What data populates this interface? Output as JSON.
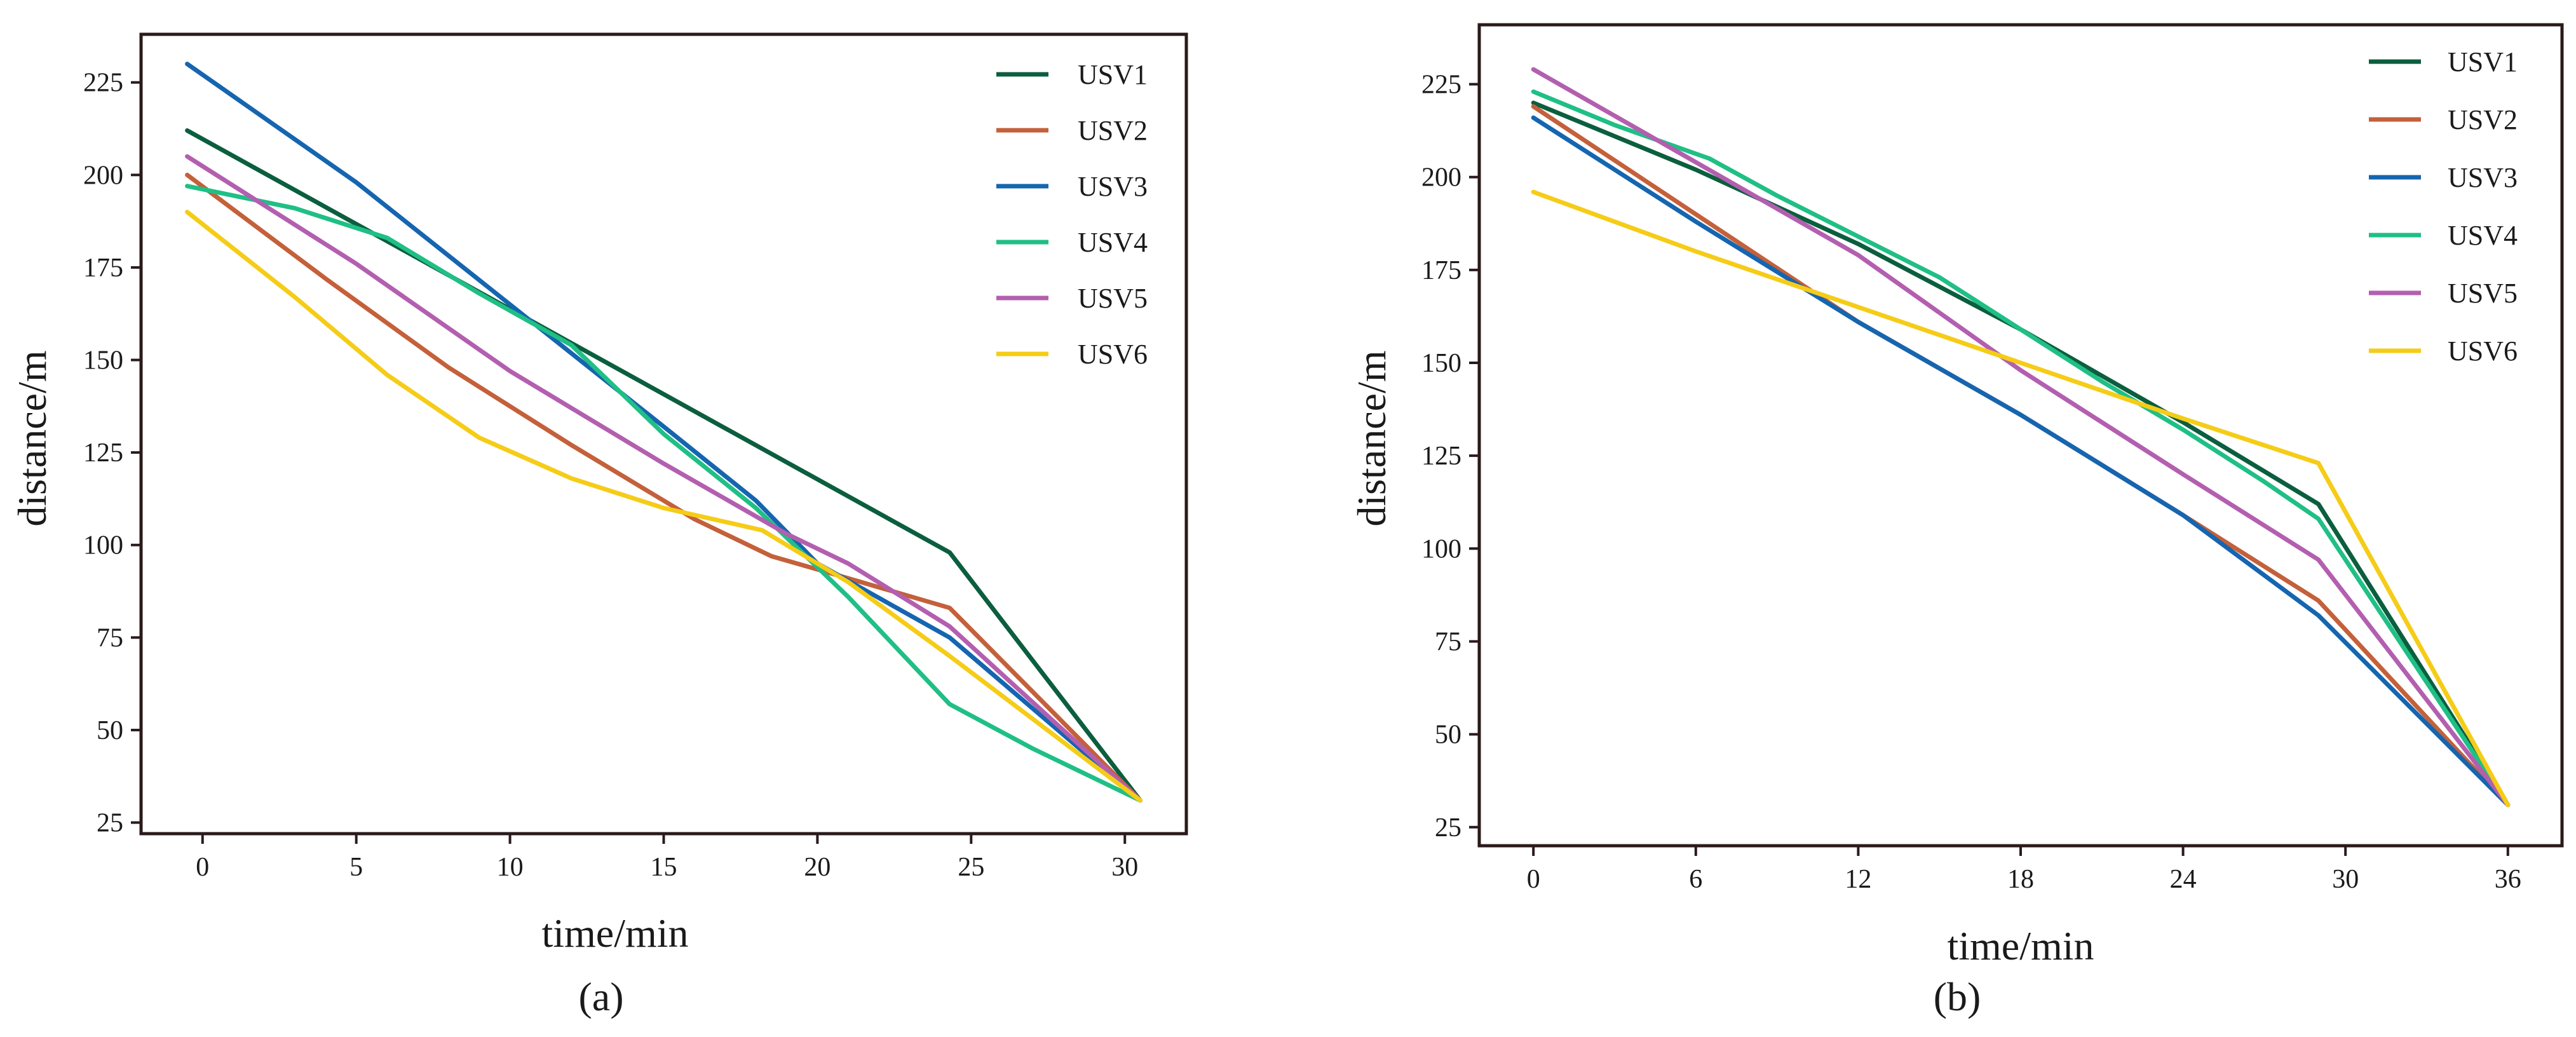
{
  "colors": {
    "USV1": "#0b5e3e",
    "USV2": "#c4603a",
    "USV3": "#1565b0",
    "USV4": "#1fbf85",
    "USV5": "#b35fb0",
    "USV6": "#f5cc17"
  },
  "chart_data": [
    {
      "type": "line",
      "panel_label": "(a)",
      "title": "",
      "xlabel": "time/min",
      "ylabel": "distance/m",
      "xlim": [
        -2,
        32
      ],
      "ylim": [
        22,
        238
      ],
      "xticks": [
        0,
        5,
        10,
        15,
        20,
        25,
        30
      ],
      "yticks": [
        25,
        50,
        75,
        100,
        125,
        150,
        175,
        200,
        225
      ],
      "legend_position": "top-right",
      "series": [
        {
          "name": "USV1",
          "x": [
            -0.5,
            24.3,
            30.5
          ],
          "y": [
            212,
            98,
            31
          ]
        },
        {
          "name": "USV2",
          "x": [
            -0.5,
            4,
            8,
            12,
            16,
            18.5,
            21,
            24.3,
            30.5
          ],
          "y": [
            200,
            172,
            148,
            127,
            107,
            97,
            91,
            83,
            31
          ]
        },
        {
          "name": "USV3",
          "x": [
            -0.5,
            5,
            10,
            15,
            18,
            20,
            24.3,
            30.5
          ],
          "y": [
            230,
            198,
            165,
            132,
            112,
            95,
            75,
            31
          ]
        },
        {
          "name": "USV4",
          "x": [
            -0.5,
            3,
            6,
            9,
            12,
            15,
            18,
            21,
            24.3,
            27,
            30.5
          ],
          "y": [
            197,
            191,
            183,
            168,
            154,
            130,
            110,
            86,
            57,
            45,
            31
          ]
        },
        {
          "name": "USV5",
          "x": [
            -0.5,
            5,
            10,
            15,
            19,
            21,
            24.3,
            30.5
          ],
          "y": [
            205,
            176,
            147,
            122,
            103,
            95,
            78,
            31
          ]
        },
        {
          "name": "USV6",
          "x": [
            -0.5,
            3,
            6,
            9,
            12,
            15,
            18.2,
            21,
            24.3,
            30.5
          ],
          "y": [
            190,
            167,
            146,
            129,
            118,
            110,
            104,
            90,
            70,
            31
          ]
        }
      ]
    },
    {
      "type": "line",
      "panel_label": "(b)",
      "title": "",
      "xlabel": "time/min",
      "ylabel": "distance/m",
      "xlim": [
        -2,
        38
      ],
      "ylim": [
        20,
        241
      ],
      "xticks": [
        0,
        6,
        12,
        18,
        24,
        30,
        36
      ],
      "yticks": [
        25,
        50,
        75,
        100,
        125,
        150,
        175,
        200,
        225
      ],
      "legend_position": "top-right",
      "series": [
        {
          "name": "USV1",
          "x": [
            0,
            6,
            12,
            18,
            24,
            29,
            36
          ],
          "y": [
            220,
            202,
            182,
            159,
            134,
            112,
            31
          ]
        },
        {
          "name": "USV2",
          "x": [
            0,
            6,
            12,
            18,
            24,
            29,
            36
          ],
          "y": [
            219,
            190,
            161,
            136,
            109,
            86,
            31
          ]
        },
        {
          "name": "USV3",
          "x": [
            0,
            6,
            12,
            18,
            24,
            29,
            36
          ],
          "y": [
            216,
            188,
            161,
            136,
            109,
            82,
            31
          ]
        },
        {
          "name": "USV4",
          "x": [
            0,
            3,
            6.5,
            9,
            12,
            15,
            18,
            21,
            24,
            27,
            29,
            36
          ],
          "y": [
            223,
            214,
            205,
            195,
            184,
            173,
            159,
            145,
            132,
            118,
            108,
            31
          ]
        },
        {
          "name": "USV5",
          "x": [
            0,
            6,
            12,
            18,
            24,
            29,
            36
          ],
          "y": [
            229,
            204,
            179,
            148,
            120,
            97,
            31
          ]
        },
        {
          "name": "USV6",
          "x": [
            0,
            6,
            12,
            18,
            24,
            29,
            36
          ],
          "y": [
            196,
            180,
            165,
            150,
            135,
            123,
            31
          ]
        }
      ]
    }
  ]
}
